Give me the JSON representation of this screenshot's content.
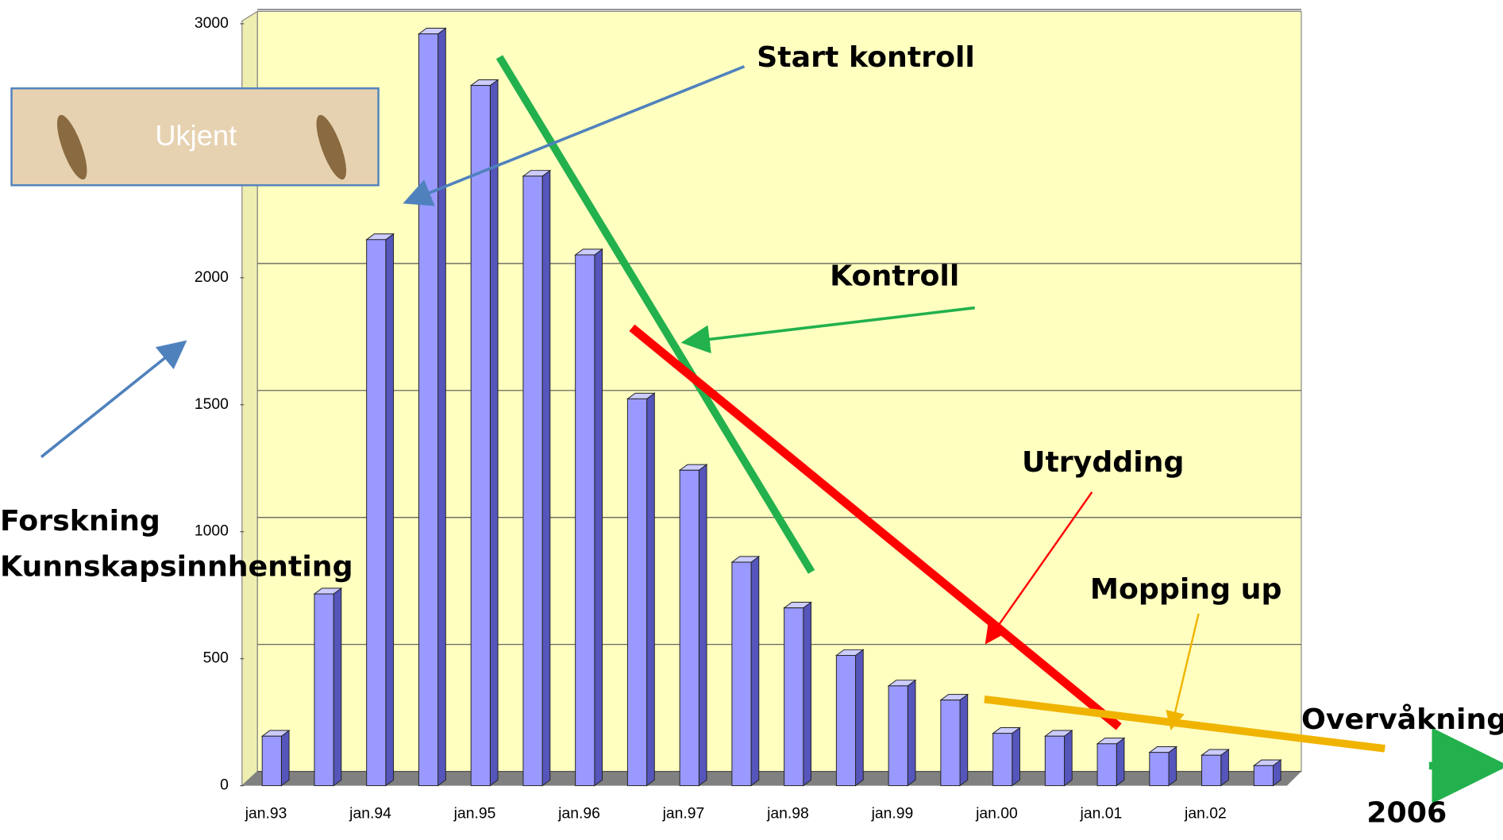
{
  "chart_data": {
    "type": "bar",
    "categories": [
      "jan.93",
      null,
      "jan.94",
      null,
      "jan.95",
      null,
      "jan.96",
      null,
      "jan.97",
      null,
      "jan.98",
      null,
      "jan.99",
      null,
      "jan.00",
      null,
      "jan.01",
      null,
      "jan.02",
      null
    ],
    "values": [
      195,
      755,
      2150,
      2960,
      2757,
      2400,
      2090,
      1523,
      1242,
      880,
      700,
      513,
      393,
      337,
      206,
      195,
      165,
      131,
      120,
      79
    ],
    "color": "#9999ff",
    "ylim": [
      0,
      3000
    ],
    "yticks": [
      0,
      500,
      1000,
      1500,
      2000,
      3000
    ],
    "grid": true,
    "annotations": {
      "unknown": "Ukjent",
      "start": "Start kontroll",
      "control": "Kontroll",
      "eradication": "Utrydding",
      "mopping": "Mopping up",
      "monitoring": "Overvåkning",
      "year": "2006",
      "research": "Forskning",
      "knowledge": "Kunnskapsinnhenting"
    }
  }
}
